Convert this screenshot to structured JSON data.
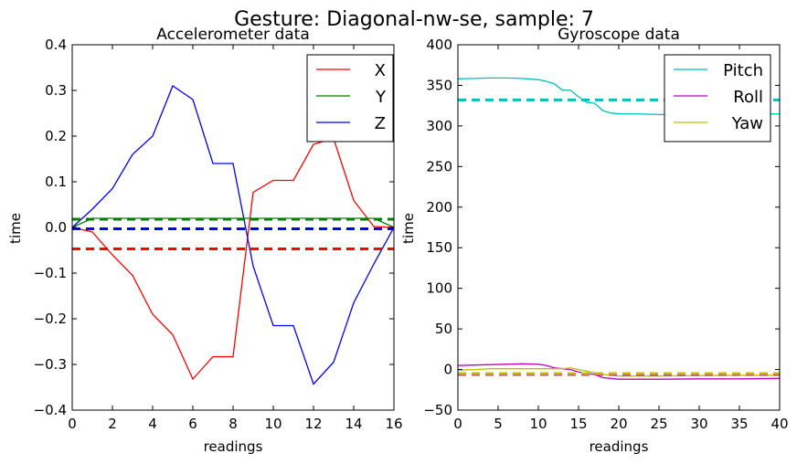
{
  "figure": {
    "suptitle": "Gesture: Diagonal-nw-se, sample: 7"
  },
  "chart_data": [
    {
      "type": "line",
      "title": "Accelerometer data",
      "xlabel": "readings",
      "ylabel": "time",
      "xlim": [
        0,
        16
      ],
      "ylim": [
        -0.4,
        0.4
      ],
      "xticks": [
        0,
        2,
        4,
        6,
        8,
        10,
        12,
        14,
        16
      ],
      "yticks": [
        -0.4,
        -0.3,
        -0.2,
        -0.1,
        0.0,
        0.1,
        0.2,
        0.3,
        0.4
      ],
      "ytick_labels": [
        "−0.4",
        "−0.3",
        "−0.2",
        "−0.1",
        "0.0",
        "0.1",
        "0.2",
        "0.3",
        "0.4"
      ],
      "xtick_labels": [
        "0",
        "2",
        "4",
        "6",
        "8",
        "10",
        "12",
        "14",
        "16"
      ],
      "grid": false,
      "legend": "top-right",
      "series": [
        {
          "name": "X",
          "color": "#ff0000",
          "x": [
            0,
            1,
            2,
            3,
            4,
            5,
            6,
            7,
            8,
            9,
            10,
            11,
            12,
            13,
            14,
            15,
            16
          ],
          "values": [
            0.0,
            -0.01,
            -0.06,
            -0.105,
            -0.19,
            -0.235,
            -0.332,
            -0.283,
            -0.283,
            0.077,
            0.103,
            0.103,
            0.182,
            0.195,
            0.059,
            0.002,
            0.0
          ],
          "mean": -0.047
        },
        {
          "name": "Y",
          "color": "#008000",
          "x": [
            0,
            1,
            2,
            3,
            4,
            5,
            6,
            7,
            8,
            9,
            10,
            11,
            12,
            13,
            14,
            15,
            16
          ],
          "values": [
            0.0,
            0.02,
            0.02,
            0.02,
            0.02,
            0.02,
            0.02,
            0.02,
            0.02,
            0.02,
            0.02,
            0.02,
            0.02,
            0.02,
            0.02,
            0.02,
            0.0
          ],
          "mean": 0.018
        },
        {
          "name": "Z",
          "color": "#0000ff",
          "x": [
            0,
            1,
            2,
            3,
            4,
            5,
            6,
            7,
            8,
            9,
            10,
            11,
            12,
            13,
            14,
            15,
            16
          ],
          "values": [
            0.0,
            0.04,
            0.085,
            0.16,
            0.2,
            0.31,
            0.28,
            0.14,
            0.14,
            -0.085,
            -0.215,
            -0.215,
            -0.343,
            -0.295,
            -0.165,
            -0.08,
            0.0
          ],
          "mean": -0.003
        }
      ]
    },
    {
      "type": "line",
      "title": "Gyroscope data",
      "xlabel": "readings",
      "ylabel": "time",
      "xlim": [
        0,
        40
      ],
      "ylim": [
        -50,
        400
      ],
      "xticks": [
        0,
        5,
        10,
        15,
        20,
        25,
        30,
        35,
        40
      ],
      "yticks": [
        -50,
        0,
        50,
        100,
        150,
        200,
        250,
        300,
        350,
        400
      ],
      "ytick_labels": [
        "−50",
        "0",
        "50",
        "100",
        "150",
        "200",
        "250",
        "300",
        "350",
        "400"
      ],
      "xtick_labels": [
        "0",
        "5",
        "10",
        "15",
        "20",
        "25",
        "30",
        "35",
        "40"
      ],
      "grid": false,
      "legend": "top-right",
      "series": [
        {
          "name": "Pitch",
          "color": "#00bfbf",
          "x": [
            0,
            2,
            4,
            6,
            8,
            10,
            11,
            12,
            13,
            14,
            15,
            16,
            17,
            18,
            19,
            20,
            22,
            25,
            30,
            35,
            40
          ],
          "values": [
            358,
            358.5,
            359,
            359,
            358.5,
            357,
            355,
            352,
            344,
            344,
            336,
            329,
            328,
            319,
            316,
            315,
            315,
            314,
            314,
            314,
            315
          ],
          "mean": 332
        },
        {
          "name": "Roll",
          "color": "#bf00bf",
          "x": [
            0,
            2,
            4,
            6,
            8,
            10,
            11,
            12,
            13,
            14,
            15,
            16,
            17,
            18,
            19,
            20,
            22,
            25,
            30,
            35,
            40
          ],
          "values": [
            5,
            5.5,
            6,
            6.5,
            7,
            6.5,
            5,
            2,
            1,
            0,
            -3,
            -5,
            -6,
            -10,
            -11,
            -12,
            -12,
            -12,
            -11.5,
            -11.5,
            -11
          ],
          "mean": -6
        },
        {
          "name": "Yaw",
          "color": "#bfbf00",
          "x": [
            0,
            2,
            4,
            6,
            8,
            10,
            11,
            12,
            13,
            14,
            15,
            16,
            17,
            18,
            19,
            20,
            22,
            25,
            30,
            35,
            40
          ],
          "values": [
            -1,
            0,
            1,
            1,
            1,
            1,
            1,
            1,
            1,
            2,
            0,
            -2,
            -4,
            -6,
            -7,
            -8,
            -8,
            -8,
            -7.5,
            -7,
            -7
          ],
          "mean": -5
        }
      ]
    }
  ]
}
